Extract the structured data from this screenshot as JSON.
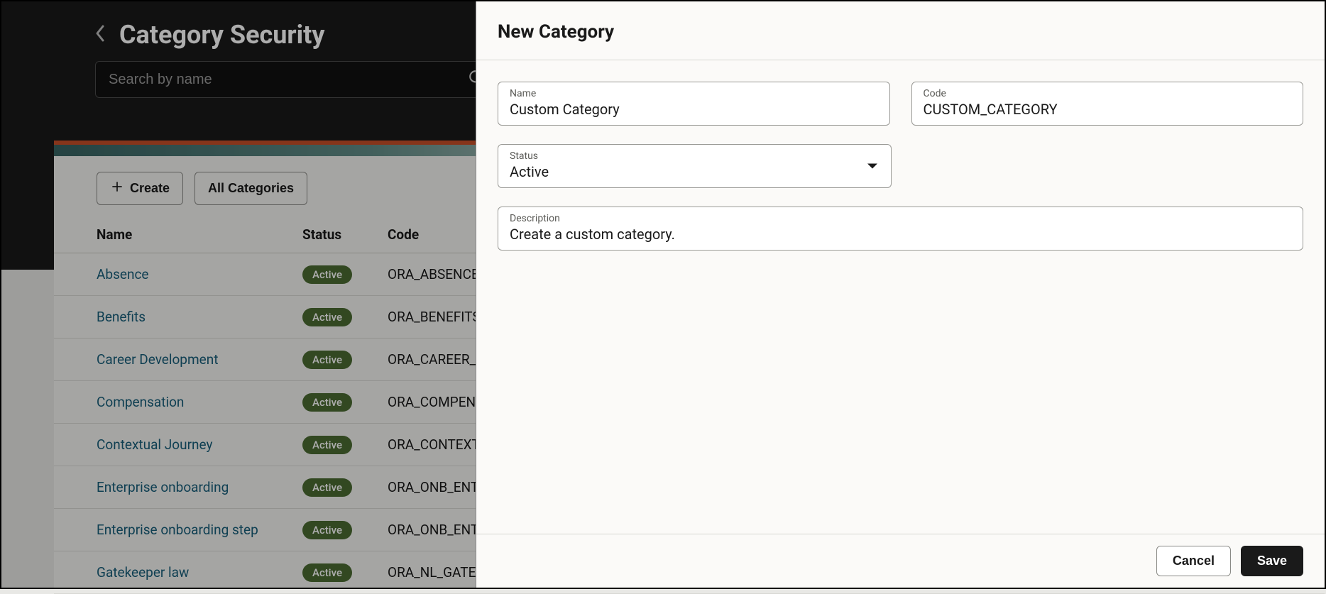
{
  "header": {
    "title": "Category Security",
    "search_placeholder": "Search by name"
  },
  "toolbar": {
    "create_label": "Create",
    "filter_label": "All Categories"
  },
  "table": {
    "columns": {
      "name": "Name",
      "status": "Status",
      "code": "Code"
    },
    "rows": [
      {
        "name": "Absence",
        "status": "Active",
        "code": "ORA_ABSENCE"
      },
      {
        "name": "Benefits",
        "status": "Active",
        "code": "ORA_BENEFITS"
      },
      {
        "name": "Career Development",
        "status": "Active",
        "code": "ORA_CAREER_DEVELOPMENT"
      },
      {
        "name": "Compensation",
        "status": "Active",
        "code": "ORA_COMPENSATION"
      },
      {
        "name": "Contextual Journey",
        "status": "Active",
        "code": "ORA_CONTEXTUAL"
      },
      {
        "name": "Enterprise onboarding",
        "status": "Active",
        "code": "ORA_ONB_ENT_ONBOARDING"
      },
      {
        "name": "Enterprise onboarding step",
        "status": "Active",
        "code": "ORA_ONB_ENT_ONBOARDING_STEP"
      },
      {
        "name": "Gatekeeper law",
        "status": "Active",
        "code": "ORA_NL_GATEKEEPER"
      }
    ]
  },
  "panel": {
    "title": "New Category",
    "fields": {
      "name": {
        "label": "Name",
        "value": "Custom Category"
      },
      "code": {
        "label": "Code",
        "value": "CUSTOM_CATEGORY"
      },
      "status": {
        "label": "Status",
        "value": "Active"
      },
      "description": {
        "label": "Description",
        "value": "Create a custom category."
      }
    },
    "buttons": {
      "cancel": "Cancel",
      "save": "Save"
    }
  },
  "colors": {
    "header_bg": "#1a1a1a",
    "accent_orange": "#d9552b",
    "link": "#175e7a",
    "badge_bg": "#4b6b32",
    "panel_bg": "#fbfaf8",
    "primary_btn_bg": "#1a1a1a"
  }
}
